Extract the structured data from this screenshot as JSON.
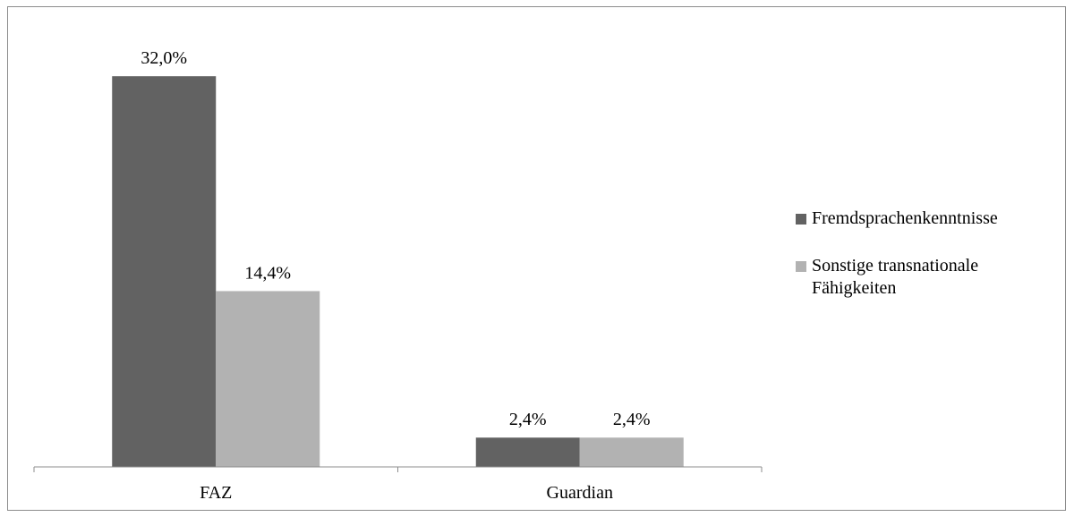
{
  "chart_data": {
    "type": "bar",
    "categories": [
      "FAZ",
      "Guardian"
    ],
    "series": [
      {
        "name": "Fremdsprachenkenntnisse",
        "values": [
          32.0,
          2.4
        ],
        "labels": [
          "32,0%",
          "2,4%"
        ],
        "color": "#626262"
      },
      {
        "name": "Sonstige transnationale Fähigkeiten",
        "values": [
          14.4,
          2.4
        ],
        "labels": [
          "14,4%",
          "2,4%"
        ],
        "color": "#b2b2b2"
      }
    ],
    "ylim": [
      0,
      35
    ],
    "grid": false,
    "legend_position": "right"
  }
}
